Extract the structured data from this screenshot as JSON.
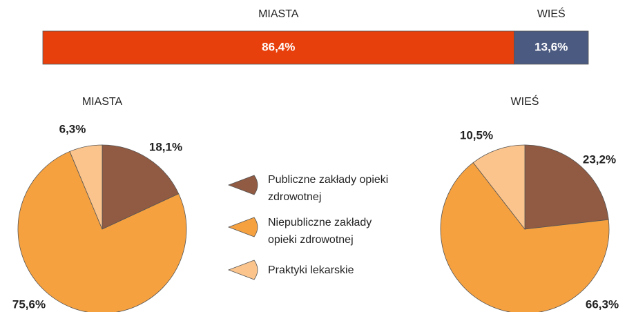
{
  "chart_data": [
    {
      "type": "stacked-bar",
      "categories": [
        "MIASTA",
        "WIEŚ"
      ],
      "values": [
        86.4,
        13.6
      ],
      "value_labels": [
        "86,4%",
        "13,6%"
      ],
      "colors": [
        "#e8400c",
        "#4b5a80"
      ]
    },
    {
      "type": "pie",
      "title": "MIASTA",
      "values": [
        18.1,
        75.6,
        6.3
      ],
      "value_labels": [
        "18,1%",
        "75,6%",
        "6,3%"
      ]
    },
    {
      "type": "pie",
      "title": "WIEŚ",
      "values": [
        23.2,
        66.3,
        10.5
      ],
      "value_labels": [
        "23,2%",
        "66,3%",
        "10,5%"
      ]
    }
  ],
  "legend": {
    "labels": [
      "Publiczne zakłady opieki zdrowotnej",
      "Niepubliczne zakłady opieki zdrowotnej",
      "Praktyki lekarskie"
    ],
    "colors": [
      "#915a42",
      "#f6a140",
      "#fbc48c"
    ]
  }
}
